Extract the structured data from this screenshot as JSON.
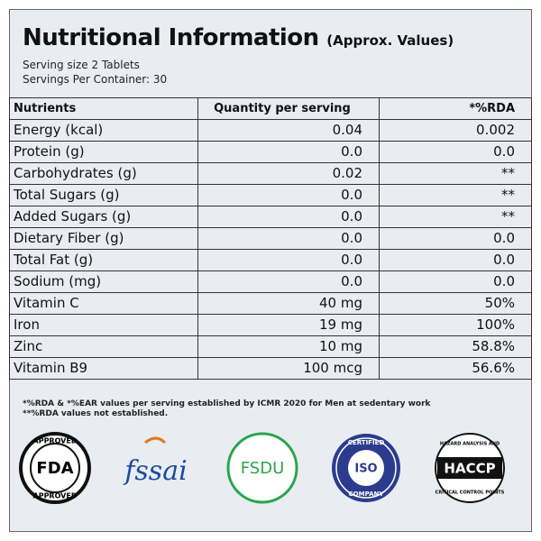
{
  "header": {
    "title": "Nutritional Information",
    "subtitle": "(Approx. Values)"
  },
  "serving": [
    "Serving size 2  Tablets",
    "Servings Per Container: 30"
  ],
  "table": {
    "columns": [
      "Nutrients",
      "Quantity per serving",
      "*%RDA"
    ],
    "rows": [
      [
        "Energy (kcal)",
        "0.04",
        "0.002"
      ],
      [
        "Protein (g)",
        "0.0",
        "0.0"
      ],
      [
        "Carbohydrates (g)",
        "0.02",
        "**"
      ],
      [
        "Total Sugars (g)",
        "0.0",
        "**"
      ],
      [
        "Added Sugars (g)",
        "0.0",
        "**"
      ],
      [
        "Dietary Fiber (g)",
        "0.0",
        "0.0"
      ],
      [
        "Total Fat (g)",
        "0.0",
        "0.0"
      ],
      [
        "Sodium (mg)",
        "0.0",
        "0.0"
      ],
      [
        "Vitamin C",
        "40 mg",
        "50%"
      ],
      [
        "Iron",
        "19 mg",
        "100%"
      ],
      [
        "Zinc",
        "10 mg",
        "58.8%"
      ],
      [
        "Vitamin B9",
        "100 mcg",
        "56.6%"
      ]
    ]
  },
  "footnotes": [
    "*%RDA & *%EAR values per serving established by ICMR 2020 for Men at sedentary work",
    "**%RDA values not established."
  ],
  "logos": {
    "fda": {
      "top": "APPROVED",
      "center": "FDA",
      "bottom": "APPROVED"
    },
    "fssai": "fssai",
    "fsdu": "FSDU",
    "iso": {
      "top": "CERTIFIED",
      "center": "ISO",
      "bottom": "COMPANY"
    },
    "haccp": {
      "top": "HAZARD ANALYSIS AND",
      "center": "HACCP",
      "bottom": "CRITICAL CONTROL POINTS"
    }
  }
}
